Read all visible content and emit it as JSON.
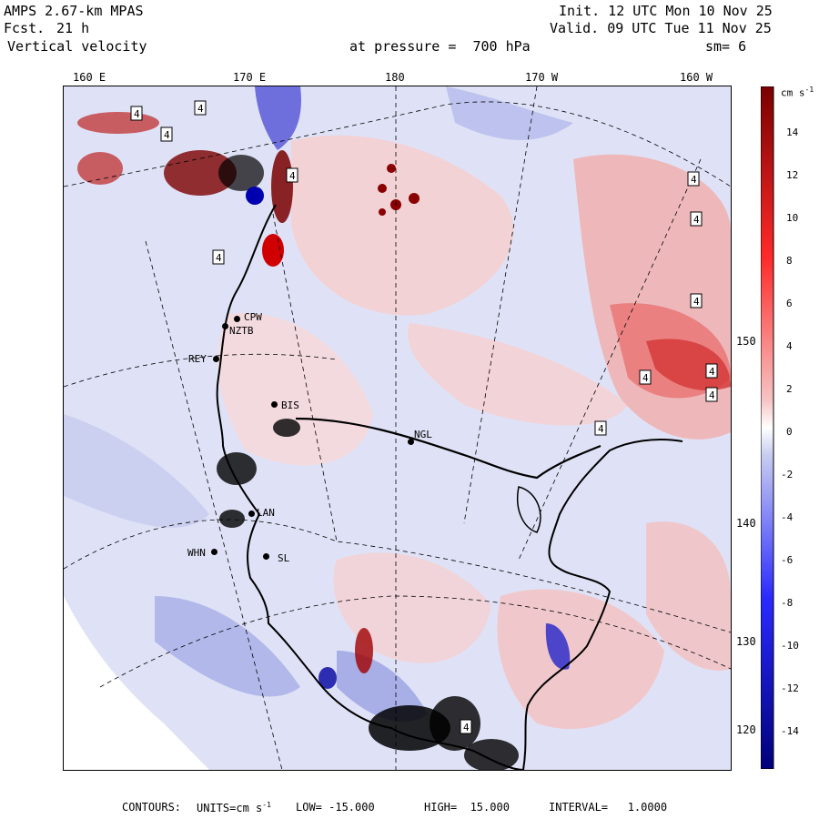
{
  "header": {
    "model": "AMPS 2.67-km MPAS",
    "fcst_label": "Fcst.",
    "fcst_value": "21 h",
    "field": "Vertical velocity",
    "init": "Init. 12 UTC Mon 10 Nov 25",
    "valid": "Valid. 09 UTC Tue 11 Nov 25",
    "pressure_label": "at pressure =  700 hPa",
    "smoothing": "sm= 6"
  },
  "axes": {
    "top_longitudes": [
      "160 E",
      "170 E",
      "180",
      "170 W",
      "160 W"
    ],
    "right_latitudes": [
      "150 W",
      "140 W",
      "130 W",
      "120 W"
    ]
  },
  "stations": [
    {
      "id": "CPW"
    },
    {
      "id": "NZTB"
    },
    {
      "id": "REY"
    },
    {
      "id": "BIS"
    },
    {
      "id": "NGL"
    },
    {
      "id": "LAN"
    },
    {
      "id": "WHN"
    },
    {
      "id": "SL"
    }
  ],
  "contour_label": "4",
  "colorbar": {
    "units": "cm s",
    "units_exp": "-1",
    "ticks": [
      "14",
      "12",
      "10",
      "8",
      "6",
      "4",
      "2",
      "0",
      "-2",
      "-4",
      "-6",
      "-8",
      "-10",
      "-12",
      "-14"
    ],
    "colors": {
      "max_red": "#7a0000",
      "mid_red": "#ff2a2a",
      "light_red": "#f6c4c4",
      "white": "#ffffff",
      "light_blue": "#c8cdf0",
      "mid_blue": "#2a2aff",
      "max_blue": "#00007a"
    }
  },
  "footer": {
    "contours_label": "CONTOURS:",
    "units_label": "UNITS=cm s",
    "units_exp": "-1",
    "low": "LOW= -15.000",
    "high": "HIGH=  15.000",
    "interval": "INTERVAL=   1.0000"
  }
}
